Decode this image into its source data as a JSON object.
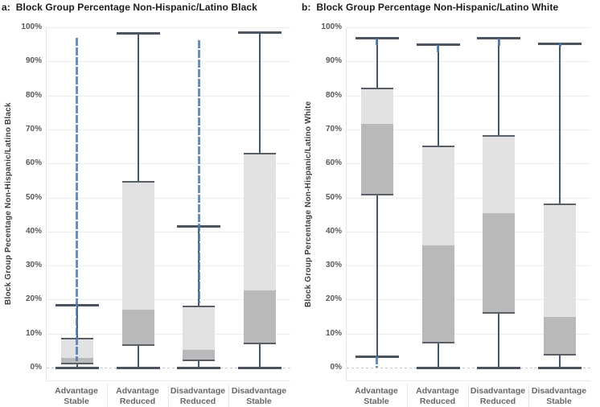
{
  "figure": {
    "description": "Two side-by-side box-and-whisker plot panels comparing block group racial composition across four neighborhood-change categories"
  },
  "colors": {
    "box_upper_fill": "#e2e2e4",
    "box_lower_fill": "#b9b9bb",
    "box_edge": "#595f66",
    "whisker": "#44566b",
    "whisker_cap": "#4c5560",
    "outlier_blue": "#4d7cb3",
    "gridline": "#ededee",
    "zero_line": "#c9c9cb"
  },
  "chart_data": [
    {
      "type": "box",
      "panel_id": "a",
      "title": "a:  Block Group Percentage Non-Hispanic/Latino Black",
      "ylabel": "Block Group Pecentage Non-Hispanic/Latino Black",
      "xlabel": "",
      "ylim": [
        0,
        100
      ],
      "ytick_step": 10,
      "ytick_suffix": "%",
      "grid": true,
      "legend": "none",
      "categories": [
        "Advantage Stable",
        "Advantage Reduced",
        "Disadvantage Reduced",
        "Disadvantage Stable"
      ],
      "boxes": [
        {
          "category": "Advantage Stable",
          "whisker_low": 0,
          "q1": 1.3,
          "median": 2.8,
          "q3": 8.4,
          "whisker_high": 18.5,
          "outlier_segments": [
            {
              "from": 2,
              "to": 97
            }
          ]
        },
        {
          "category": "Advantage Reduced",
          "whisker_low": 0,
          "q1": 6.6,
          "median": 17.0,
          "q3": 54.7,
          "whisker_high": 98.3,
          "outlier_segments": []
        },
        {
          "category": "Disadvantage Reduced",
          "whisker_low": 0,
          "q1": 2.2,
          "median": 5.0,
          "q3": 18.0,
          "whisker_high": 41.5,
          "outlier_segments": [
            {
              "from": 19,
              "to": 96.3
            }
          ]
        },
        {
          "category": "Disadvantage Stable",
          "whisker_low": 0,
          "q1": 7.0,
          "median": 22.5,
          "q3": 63.0,
          "whisker_high": 98.6,
          "outlier_segments": []
        }
      ]
    },
    {
      "type": "box",
      "panel_id": "b",
      "title": "b:  Block Group Percentage Non-Hispanic/Latino White",
      "ylabel": "Block Group Percentage Non-Hispanic/Latino White",
      "xlabel": "",
      "ylim": [
        0,
        100
      ],
      "ytick_step": 10,
      "ytick_suffix": "%",
      "grid": true,
      "legend": "none",
      "categories": [
        "Advantage Stable",
        "Advantage Reduced",
        "Disadvantage Reduced",
        "Disadvantage Stable"
      ],
      "boxes": [
        {
          "category": "Advantage Stable",
          "whisker_low": 3.4,
          "q1": 50.8,
          "median": 71.8,
          "q3": 82.0,
          "whisker_high": 97.0,
          "outlier_segments": [
            {
              "from": 0,
              "to": 3.4
            },
            {
              "from": 94.7,
              "to": 96.7
            }
          ]
        },
        {
          "category": "Advantage Reduced",
          "whisker_low": 0,
          "q1": 7.3,
          "median": 36.0,
          "q3": 65.0,
          "whisker_high": 95.0,
          "outlier_segments": [
            {
              "from": 92.6,
              "to": 94.8
            }
          ]
        },
        {
          "category": "Disadvantage Reduced",
          "whisker_low": 0,
          "q1": 16.0,
          "median": 45.5,
          "q3": 68.2,
          "whisker_high": 97.0,
          "outlier_segments": [
            {
              "from": 94.6,
              "to": 96.8
            }
          ]
        },
        {
          "category": "Disadvantage Stable",
          "whisker_low": 0,
          "q1": 3.7,
          "median": 14.8,
          "q3": 48.0,
          "whisker_high": 95.3,
          "outlier_segments": [
            {
              "from": 94.3,
              "to": 95.6
            }
          ]
        }
      ]
    }
  ]
}
